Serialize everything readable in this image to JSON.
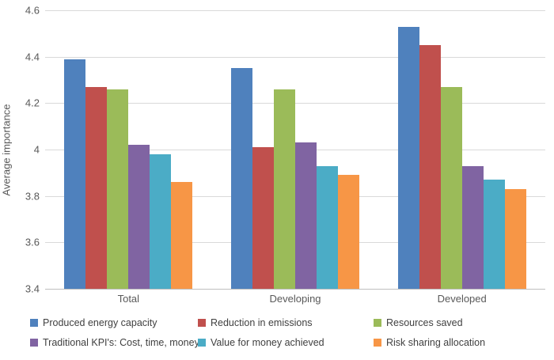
{
  "chart_data": {
    "type": "bar",
    "title": "",
    "xlabel": "",
    "ylabel": "Average importance",
    "ylim": [
      3.4,
      4.6
    ],
    "yticks": [
      {
        "value": 3.4,
        "label": "3.4"
      },
      {
        "value": 3.6,
        "label": "3.6"
      },
      {
        "value": 3.8,
        "label": "3.8"
      },
      {
        "value": 4.0,
        "label": "4"
      },
      {
        "value": 4.2,
        "label": "4.2"
      },
      {
        "value": 4.4,
        "label": "4.4"
      },
      {
        "value": 4.6,
        "label": "4.6"
      }
    ],
    "grid": true,
    "legend_position": "bottom",
    "categories": [
      "Total",
      "Developing",
      "Developed"
    ],
    "series": [
      {
        "name": "Produced energy capacity",
        "color": "#4F81BD",
        "values": [
          4.39,
          4.35,
          4.53
        ]
      },
      {
        "name": "Reduction in emissions",
        "color": "#C0504D",
        "values": [
          4.27,
          4.01,
          4.45
        ]
      },
      {
        "name": "Resources saved",
        "color": "#9BBB59",
        "values": [
          4.26,
          4.26,
          4.27
        ]
      },
      {
        "name": "Traditional KPI's: Cost, time, money",
        "color": "#8064A2",
        "values": [
          4.02,
          4.03,
          3.93
        ]
      },
      {
        "name": "Value for money achieved",
        "color": "#4BACC6",
        "values": [
          3.98,
          3.93,
          3.87
        ]
      },
      {
        "name": "Risk sharing allocation",
        "color": "#F79646",
        "values": [
          3.86,
          3.89,
          3.83
        ]
      }
    ]
  }
}
